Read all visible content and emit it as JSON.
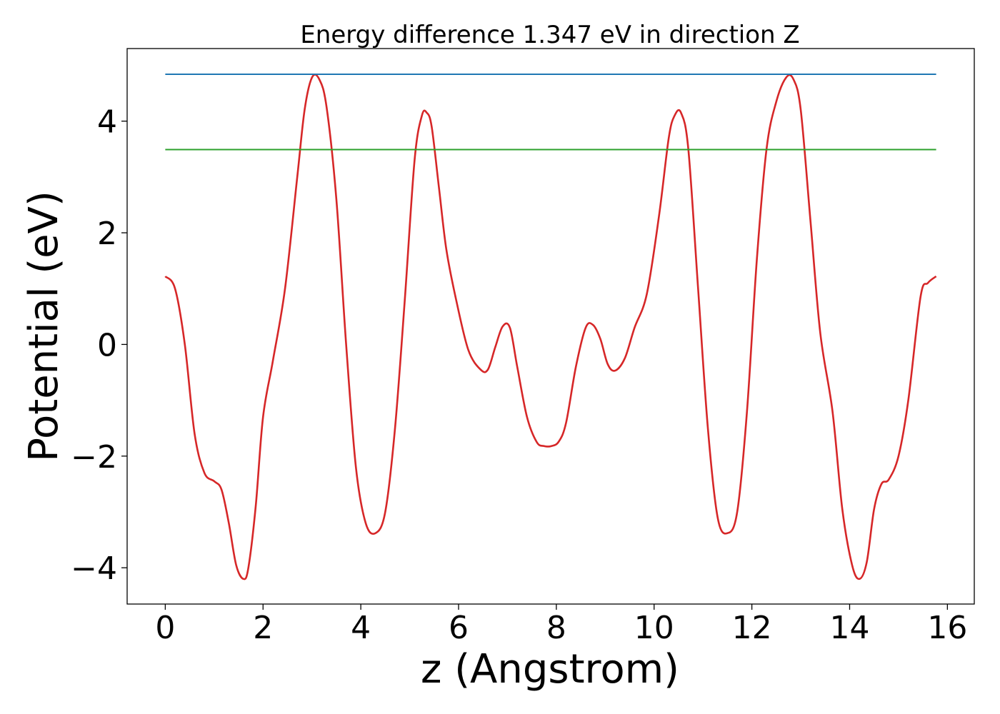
{
  "chart_data": {
    "type": "line",
    "title": "Energy difference 1.347 eV in direction Z",
    "xlabel": "z (Angstrom)",
    "ylabel": "Potential (eV)",
    "xlim": [
      -0.78,
      16.55
    ],
    "ylim": [
      -4.65,
      5.3
    ],
    "xticks": [
      0,
      2,
      4,
      6,
      8,
      10,
      12,
      14,
      16
    ],
    "xtick_labels": [
      "0",
      "2",
      "4",
      "6",
      "8",
      "10",
      "12",
      "14",
      "16"
    ],
    "yticks": [
      -4,
      -2,
      0,
      2,
      4
    ],
    "ytick_labels": [
      "−4",
      "−2",
      "0",
      "2",
      "4"
    ],
    "grid": false,
    "series": [
      {
        "color": "#d62728",
        "x": [
          0,
          0.2,
          0.4,
          0.6,
          0.8,
          1.0,
          1.15,
          1.3,
          1.45,
          1.6,
          1.7,
          1.85,
          2.0,
          2.2,
          2.45,
          2.7,
          2.85,
          3.0,
          3.15,
          3.3,
          3.5,
          3.7,
          3.9,
          4.1,
          4.3,
          4.5,
          4.7,
          4.9,
          5.1,
          5.25,
          5.35,
          5.45,
          5.6,
          5.75,
          5.95,
          6.2,
          6.45,
          6.6,
          6.75,
          6.9,
          7.05,
          7.2,
          7.4,
          7.6,
          7.75,
          7.9,
          8.05,
          8.2,
          8.4,
          8.6,
          8.75,
          8.9,
          9.05,
          9.2,
          9.4,
          9.6,
          9.85,
          10.1,
          10.3,
          10.42,
          10.55,
          10.7,
          10.9,
          11.1,
          11.3,
          11.5,
          11.7,
          11.9,
          12.1,
          12.3,
          12.5,
          12.7,
          12.85,
          13.0,
          13.2,
          13.4,
          13.65,
          13.85,
          14.05,
          14.2,
          14.35,
          14.5,
          14.65,
          14.8,
          15.0,
          15.2,
          15.45,
          15.6,
          15.77
        ],
        "y": [
          1.22,
          1.0,
          0.0,
          -1.6,
          -2.3,
          -2.45,
          -2.6,
          -3.2,
          -3.95,
          -4.2,
          -4.0,
          -2.9,
          -1.3,
          -0.3,
          1.0,
          3.0,
          4.2,
          4.78,
          4.75,
          4.25,
          2.6,
          0.0,
          -2.2,
          -3.2,
          -3.38,
          -3.0,
          -1.5,
          0.8,
          3.3,
          4.1,
          4.15,
          3.9,
          2.8,
          1.7,
          0.8,
          -0.1,
          -0.45,
          -0.45,
          -0.05,
          0.32,
          0.3,
          -0.4,
          -1.3,
          -1.75,
          -1.82,
          -1.82,
          -1.74,
          -1.4,
          -0.4,
          0.3,
          0.35,
          0.1,
          -0.35,
          -0.47,
          -0.25,
          0.3,
          0.9,
          2.3,
          3.7,
          4.1,
          4.15,
          3.5,
          1.0,
          -1.5,
          -3.1,
          -3.38,
          -3.0,
          -1.2,
          1.5,
          3.5,
          4.35,
          4.78,
          4.75,
          4.2,
          2.2,
          0.2,
          -1.2,
          -2.95,
          -3.95,
          -4.2,
          -3.9,
          -2.95,
          -2.5,
          -2.42,
          -2.0,
          -1.0,
          0.85,
          1.1,
          1.22
        ]
      },
      {
        "color": "#1f77b4",
        "x": [
          0,
          15.77
        ],
        "y": [
          4.84,
          4.84
        ]
      },
      {
        "color": "#2ca02c",
        "x": [
          0,
          15.77
        ],
        "y": [
          3.49,
          3.49
        ]
      }
    ]
  }
}
